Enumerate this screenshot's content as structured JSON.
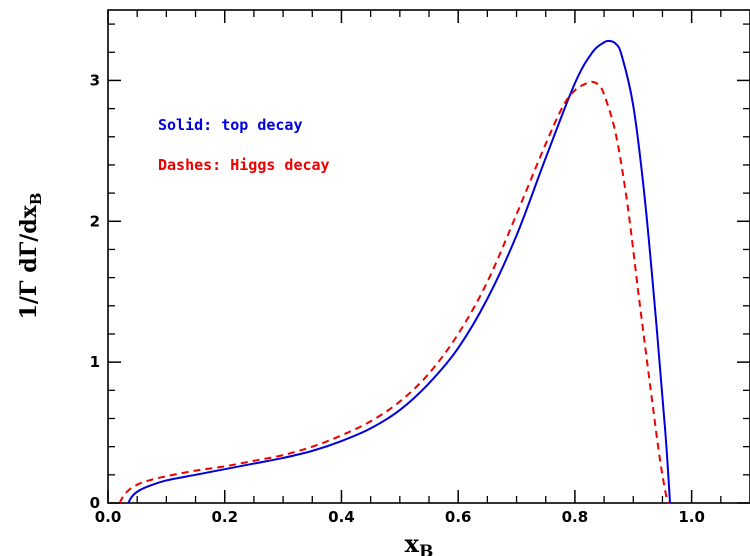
{
  "chart_data": {
    "type": "line",
    "title": "",
    "xlabel": {
      "main": "x",
      "sub": "B"
    },
    "ylabel": {
      "main": "1/Γ dΓ/dx",
      "sub": "B"
    },
    "xlim": [
      0.0,
      1.1
    ],
    "ylim": [
      0.0,
      3.5
    ],
    "x_ticks": [
      "0.0",
      "0.2",
      "0.4",
      "0.6",
      "0.8",
      "1.0"
    ],
    "x_tick_values": [
      0.0,
      0.2,
      0.4,
      0.6,
      0.8,
      1.0
    ],
    "y_ticks": [
      "0",
      "1",
      "2",
      "3"
    ],
    "y_tick_values": [
      0,
      1,
      2,
      3
    ],
    "grid": false,
    "legend_placement": "top-left",
    "annotations": [
      {
        "text": "Solid: top decay",
        "color": "#0000dd"
      },
      {
        "text": "Dashes: Higgs decay",
        "color": "#ee0000"
      }
    ],
    "series": [
      {
        "style": "solid",
        "color": "#0000dd",
        "x": [
          0.035,
          0.04,
          0.05,
          0.07,
          0.1,
          0.15,
          0.2,
          0.25,
          0.3,
          0.35,
          0.4,
          0.45,
          0.5,
          0.55,
          0.6,
          0.65,
          0.7,
          0.75,
          0.8,
          0.83,
          0.85,
          0.86,
          0.87,
          0.88,
          0.9,
          0.92,
          0.94,
          0.955,
          0.963
        ],
        "y": [
          0.0,
          0.04,
          0.08,
          0.12,
          0.16,
          0.2,
          0.24,
          0.28,
          0.32,
          0.37,
          0.44,
          0.53,
          0.66,
          0.85,
          1.1,
          1.45,
          1.9,
          2.45,
          2.98,
          3.2,
          3.27,
          3.28,
          3.26,
          3.18,
          2.82,
          2.15,
          1.25,
          0.5,
          0.0
        ]
      },
      {
        "style": "dashed",
        "color": "#ee0000",
        "x": [
          0.02,
          0.025,
          0.035,
          0.05,
          0.07,
          0.1,
          0.15,
          0.2,
          0.25,
          0.3,
          0.35,
          0.4,
          0.45,
          0.5,
          0.55,
          0.6,
          0.65,
          0.7,
          0.75,
          0.78,
          0.8,
          0.82,
          0.83,
          0.84,
          0.85,
          0.87,
          0.89,
          0.91,
          0.93,
          0.945,
          0.955,
          0.96
        ],
        "y": [
          0.0,
          0.04,
          0.09,
          0.13,
          0.16,
          0.19,
          0.23,
          0.26,
          0.3,
          0.34,
          0.4,
          0.48,
          0.58,
          0.72,
          0.92,
          1.2,
          1.57,
          2.05,
          2.55,
          2.82,
          2.93,
          2.98,
          2.99,
          2.97,
          2.9,
          2.62,
          2.12,
          1.45,
          0.8,
          0.33,
          0.08,
          0.0
        ]
      }
    ]
  }
}
